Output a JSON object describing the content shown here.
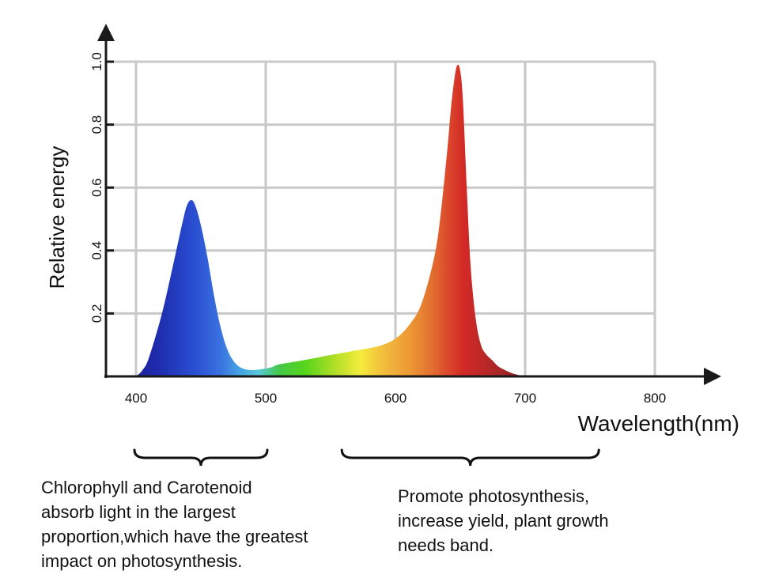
{
  "chart_data": {
    "type": "area",
    "title": "",
    "xlabel": "Wavelength(nm)",
    "ylabel": "Relative energy",
    "xlim": [
      375,
      800
    ],
    "ylim": [
      0,
      1.0
    ],
    "x_ticks": [
      400,
      500,
      600,
      700,
      800
    ],
    "x_tick_labels": [
      "400",
      "500",
      "600",
      "700",
      "800"
    ],
    "y_ticks": [
      0.2,
      0.4,
      0.6,
      0.8,
      1.0
    ],
    "y_tick_labels": [
      "0.2",
      "0.4",
      "0.6",
      "0.8",
      "1.0"
    ],
    "grid": true,
    "series": [
      {
        "x": [
          400,
          405,
          410,
          420,
          430,
          437,
          440,
          443,
          446,
          450,
          455,
          460,
          465,
          470,
          475,
          480,
          485,
          490,
          495,
          500,
          505,
          510,
          520,
          530,
          540,
          550,
          560,
          570,
          580,
          590,
          600,
          610,
          620,
          630,
          635,
          640,
          643,
          646,
          648,
          650,
          652,
          655,
          658,
          662,
          666,
          670,
          675,
          680,
          690,
          700
        ],
        "y": [
          0.0,
          0.02,
          0.06,
          0.2,
          0.38,
          0.51,
          0.55,
          0.56,
          0.54,
          0.48,
          0.38,
          0.26,
          0.16,
          0.09,
          0.05,
          0.03,
          0.022,
          0.02,
          0.022,
          0.025,
          0.03,
          0.038,
          0.045,
          0.052,
          0.06,
          0.068,
          0.075,
          0.083,
          0.09,
          0.1,
          0.12,
          0.16,
          0.23,
          0.38,
          0.52,
          0.72,
          0.86,
          0.96,
          0.99,
          0.97,
          0.88,
          0.6,
          0.35,
          0.18,
          0.1,
          0.07,
          0.05,
          0.03,
          0.01,
          0.0
        ]
      }
    ],
    "fill_colors": [
      {
        "x": 400,
        "color": "#1f1f9e"
      },
      {
        "x": 420,
        "color": "#1f2fb0"
      },
      {
        "x": 445,
        "color": "#2a4ed2"
      },
      {
        "x": 465,
        "color": "#3a72e0"
      },
      {
        "x": 480,
        "color": "#46a3e4"
      },
      {
        "x": 495,
        "color": "#58c8d8"
      },
      {
        "x": 510,
        "color": "#45c84a"
      },
      {
        "x": 530,
        "color": "#55d41a"
      },
      {
        "x": 555,
        "color": "#b8e028"
      },
      {
        "x": 573,
        "color": "#f4ec3c"
      },
      {
        "x": 590,
        "color": "#f2be3c"
      },
      {
        "x": 610,
        "color": "#ee9a36"
      },
      {
        "x": 625,
        "color": "#e37830"
      },
      {
        "x": 640,
        "color": "#dc4a2c"
      },
      {
        "x": 652,
        "color": "#d32a26"
      },
      {
        "x": 670,
        "color": "#b82828"
      },
      {
        "x": 700,
        "color": "#8a2020"
      }
    ],
    "colors": {
      "grid": "#c8c8c8",
      "axis": "#1a1a1a",
      "brace": "#111111"
    }
  },
  "annotations": {
    "left": {
      "lines": [
        "Chlorophyll and Carotenoid",
        "absorb light in the largest",
        "proportion,which have the greatest",
        "impact on photosynthesis."
      ],
      "span": [
        400,
        500
      ]
    },
    "right": {
      "lines": [
        "Promote photosynthesis,",
        "increase yield, plant growth",
        "needs band."
      ],
      "span": [
        580,
        755
      ]
    }
  }
}
